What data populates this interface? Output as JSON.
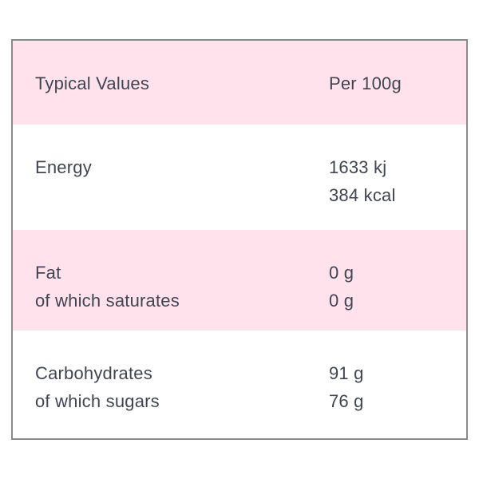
{
  "table": {
    "title_column_header": "Typical Values",
    "value_column_header": "Per 100g",
    "rows": [
      {
        "name": "energy",
        "label_line1": "Energy",
        "label_line2": "",
        "value_line1": "1633 kj",
        "value_line2": "384 kcal"
      },
      {
        "name": "fat",
        "label_line1": "Fat",
        "label_line2": "of which saturates",
        "value_line1": "0 g",
        "value_line2": "0 g"
      },
      {
        "name": "carbohydrates",
        "label_line1": "Carbohydrates",
        "label_line2": "of which sugars",
        "value_line1": "91 g",
        "value_line2": "76 g"
      }
    ],
    "colors": {
      "shaded_row_background": "#ffe2eb",
      "row_background": "#ffffff",
      "text": "#3f4553",
      "border": "#8a8a8a",
      "page_background": "#ffffff"
    }
  }
}
